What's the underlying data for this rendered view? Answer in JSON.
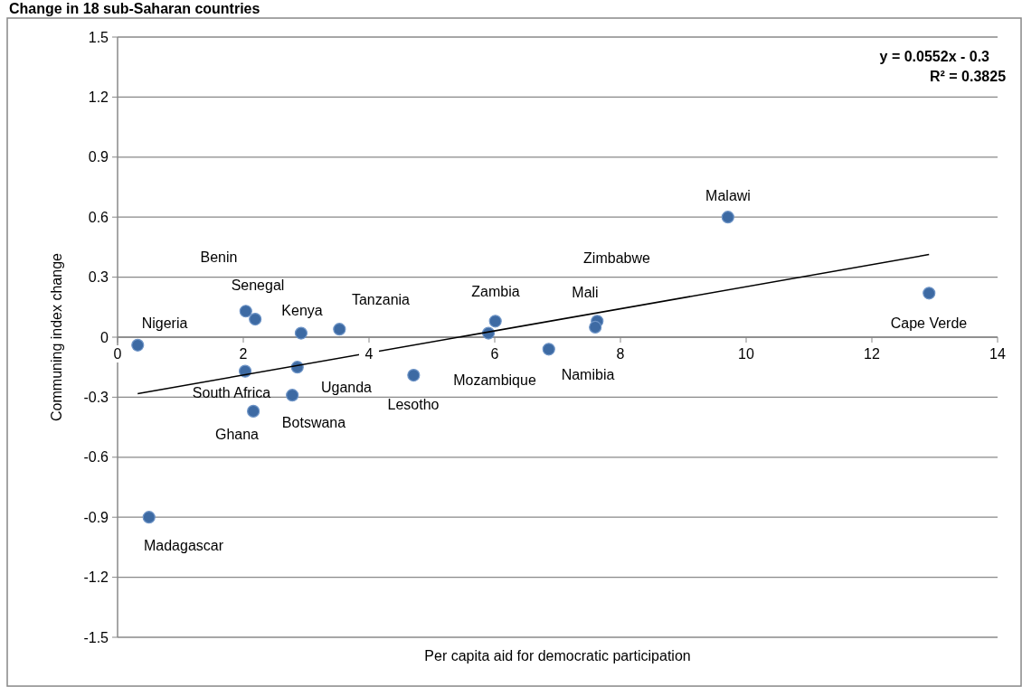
{
  "chart_data": {
    "type": "scatter",
    "title": "Change in 18 sub-Saharan countries",
    "xlabel": "Per capita aid for democratic participation",
    "ylabel": "Communing index change",
    "xlim": [
      0,
      14
    ],
    "xticks": [
      0,
      2,
      4,
      6,
      8,
      10,
      12,
      14
    ],
    "ylim": [
      -1.5,
      1.5
    ],
    "yticks": [
      -1.5,
      -1.2,
      -0.9,
      -0.6,
      -0.3,
      0,
      0.3,
      0.6,
      0.9,
      1.2,
      1.5
    ],
    "grid": "y",
    "series": [
      {
        "color": "#3d6aa3",
        "marker": "circle",
        "x": [
          0.32,
          2.04,
          2.19,
          2.92,
          3.53,
          2.03,
          2.86,
          2.78,
          2.16,
          4.71,
          5.9,
          6.01,
          6.86,
          7.63,
          7.6,
          9.71,
          12.91,
          0.5
        ],
        "values": [
          -0.04,
          0.13,
          0.09,
          0.02,
          0.04,
          -0.17,
          -0.15,
          -0.29,
          -0.37,
          -0.19,
          0.02,
          0.08,
          -0.06,
          0.08,
          0.05,
          0.6,
          0.22,
          -0.9
        ]
      },
      {
        "type": "line",
        "color": "#000000",
        "marker": "none",
        "x": [
          0.32,
          12.91
        ],
        "values": [
          -0.282,
          0.413
        ]
      }
    ],
    "annotations": [
      "Nigeria",
      "Benin",
      "Senegal",
      "Kenya",
      "Tanzania",
      "South Africa",
      "Uganda",
      "Botswana",
      "Ghana",
      "Lesotho",
      "Mozambique",
      "Zambia",
      "Mali",
      "Zimbabwe",
      "Namibia",
      "Malawi",
      "Cape Verde",
      "Madagascar",
      "y = 0.0552x - 0.3",
      "R² = 0.3825"
    ]
  }
}
